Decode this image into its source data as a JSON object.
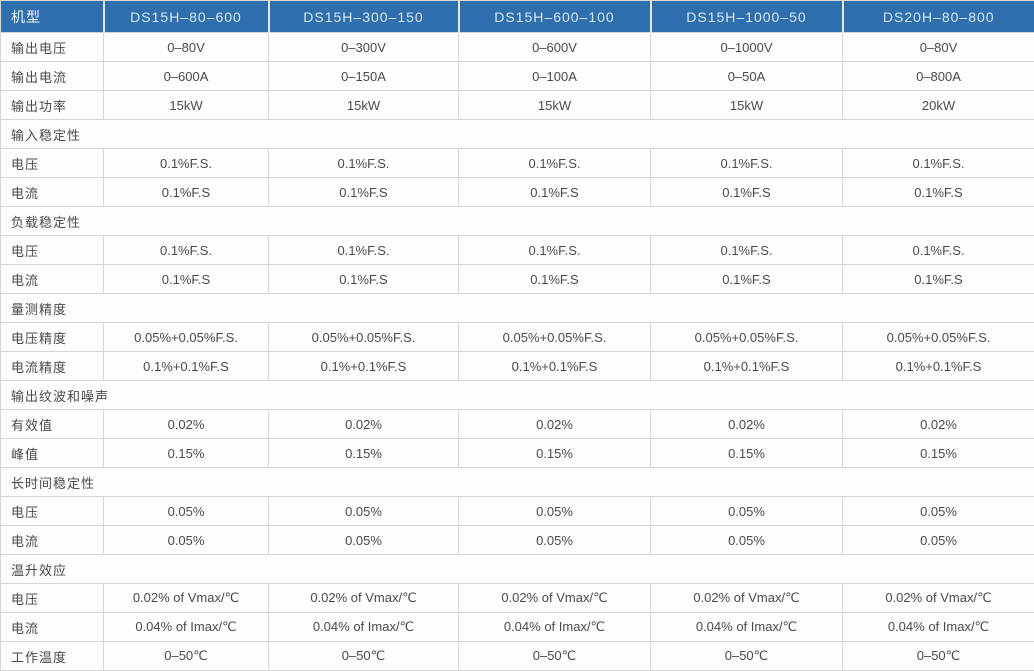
{
  "table": {
    "title": "power-supply-specifications",
    "header": [
      "机型",
      "DS15H–80–600",
      "DS15H–300–150",
      "DS15H–600–100",
      "DS15H–1000–50",
      "DS20H–80–800"
    ],
    "rows": [
      {
        "type": "data",
        "label": "输出电压",
        "values": [
          "0–80V",
          "0–300V",
          "0–600V",
          "0–1000V",
          "0–80V"
        ]
      },
      {
        "type": "data",
        "label": "输出电流",
        "values": [
          "0–600A",
          "0–150A",
          "0–100A",
          "0–50A",
          "0–800A"
        ]
      },
      {
        "type": "data",
        "label": "输出功率",
        "values": [
          "15kW",
          "15kW",
          "15kW",
          "15kW",
          "20kW"
        ]
      },
      {
        "type": "section",
        "label": "输入稳定性"
      },
      {
        "type": "data",
        "label": "电压",
        "values": [
          "0.1%F.S.",
          "0.1%F.S.",
          "0.1%F.S.",
          "0.1%F.S.",
          "0.1%F.S."
        ]
      },
      {
        "type": "data",
        "label": "电流",
        "values": [
          "0.1%F.S",
          "0.1%F.S",
          "0.1%F.S",
          "0.1%F.S",
          "0.1%F.S"
        ]
      },
      {
        "type": "section",
        "label": "负载稳定性"
      },
      {
        "type": "data",
        "label": "电压",
        "values": [
          "0.1%F.S.",
          "0.1%F.S.",
          "0.1%F.S.",
          "0.1%F.S.",
          "0.1%F.S."
        ]
      },
      {
        "type": "data",
        "label": "电流",
        "values": [
          "0.1%F.S",
          "0.1%F.S",
          "0.1%F.S",
          "0.1%F.S",
          "0.1%F.S"
        ]
      },
      {
        "type": "section",
        "label": "量测精度"
      },
      {
        "type": "data",
        "label": "电压精度",
        "values": [
          "0.05%+0.05%F.S.",
          "0.05%+0.05%F.S.",
          "0.05%+0.05%F.S.",
          "0.05%+0.05%F.S.",
          "0.05%+0.05%F.S."
        ]
      },
      {
        "type": "data",
        "label": "电流精度",
        "values": [
          "0.1%+0.1%F.S",
          "0.1%+0.1%F.S",
          "0.1%+0.1%F.S",
          "0.1%+0.1%F.S",
          "0.1%+0.1%F.S"
        ]
      },
      {
        "type": "section",
        "label": "输出纹波和噪声"
      },
      {
        "type": "data",
        "label": "有效值",
        "values": [
          "0.02%",
          "0.02%",
          "0.02%",
          "0.02%",
          "0.02%"
        ]
      },
      {
        "type": "data",
        "label": "峰值",
        "values": [
          "0.15%",
          "0.15%",
          "0.15%",
          "0.15%",
          "0.15%"
        ]
      },
      {
        "type": "section",
        "label": "长时间稳定性"
      },
      {
        "type": "data",
        "label": "电压",
        "values": [
          "0.05%",
          "0.05%",
          "0.05%",
          "0.05%",
          "0.05%"
        ]
      },
      {
        "type": "data",
        "label": "电流",
        "values": [
          "0.05%",
          "0.05%",
          "0.05%",
          "0.05%",
          "0.05%"
        ]
      },
      {
        "type": "section",
        "label": "温升效应"
      },
      {
        "type": "data",
        "label": "电压",
        "values": [
          "0.02% of Vmax/℃",
          "0.02% of Vmax/℃",
          "0.02% of Vmax/℃",
          "0.02% of Vmax/℃",
          "0.02% of Vmax/℃"
        ]
      },
      {
        "type": "data",
        "label": "电流",
        "values": [
          "0.04% of Imax/℃",
          "0.04% of Imax/℃",
          "0.04% of Imax/℃",
          "0.04% of Imax/℃",
          "0.04% of Imax/℃"
        ]
      },
      {
        "type": "data",
        "label": "工作温度",
        "values": [
          "0–50℃",
          "0–50℃",
          "0–50℃",
          "0–50℃",
          "0–50℃"
        ]
      }
    ],
    "colors": {
      "header_bg": "#2f6fad",
      "header_text": "#d9e7f5",
      "body_bg": "#fdfdfd",
      "border": "#d6d6d6",
      "text": "#4a4a4a"
    }
  }
}
